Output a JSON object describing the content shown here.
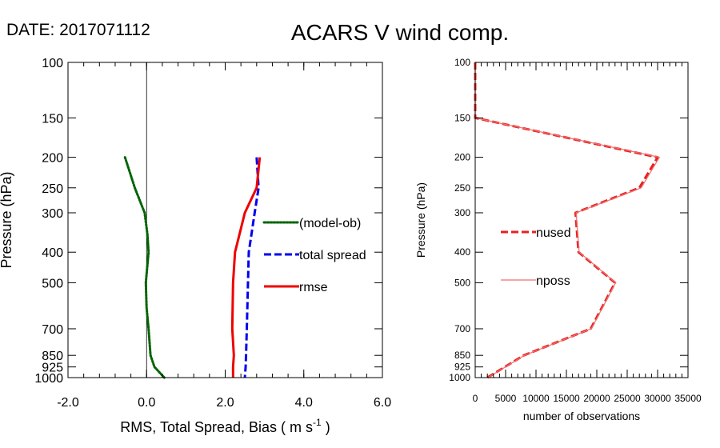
{
  "header": {
    "date_label": "DATE: 2017071112",
    "title": "ACARS V wind comp."
  },
  "colors": {
    "bias": "#006400",
    "spread": "#0000ee",
    "rmse": "#ee0000",
    "nused": "#e82020",
    "nposs": "#f07070",
    "axis": "#000000"
  },
  "chart_data": [
    {
      "type": "line",
      "xlabel_main": "RMS, Total Spread, Bias ( m s",
      "xlabel_exp": "-1",
      "xlabel_close": " )",
      "ylabel": "Pressure (hPa)",
      "xlim": [
        -2.0,
        6.0
      ],
      "ylim": [
        1000,
        100
      ],
      "y_scale": "log",
      "x_ticks": [
        -2.0,
        0.0,
        2.0,
        4.0,
        6.0
      ],
      "x_tick_labels": [
        "-2.0",
        "0.0",
        "2.0",
        "4.0",
        "6.0"
      ],
      "y_ticks": [
        100,
        150,
        200,
        250,
        300,
        400,
        500,
        700,
        850,
        925,
        1000
      ],
      "y_tick_labels": [
        "100",
        "150",
        "200",
        "250",
        "300",
        "400",
        "500",
        "700",
        "850",
        "925",
        "1000"
      ],
      "zero_line": 0.0,
      "legend_position": "center-right",
      "series": [
        {
          "name": "(model-ob)",
          "style": "dotted",
          "color": "#006400",
          "points": [
            {
              "p": 200,
              "v": -0.55
            },
            {
              "p": 250,
              "v": -0.3
            },
            {
              "p": 300,
              "v": -0.05
            },
            {
              "p": 350,
              "v": 0.02
            },
            {
              "p": 400,
              "v": 0.05
            },
            {
              "p": 500,
              "v": -0.02
            },
            {
              "p": 600,
              "v": 0.0
            },
            {
              "p": 700,
              "v": 0.05
            },
            {
              "p": 850,
              "v": 0.1
            },
            {
              "p": 925,
              "v": 0.2
            },
            {
              "p": 1000,
              "v": 0.45
            }
          ]
        },
        {
          "name": "total spread",
          "style": "dashed",
          "color": "#0000ee",
          "points": [
            {
              "p": 200,
              "v": 2.8
            },
            {
              "p": 250,
              "v": 2.85
            },
            {
              "p": 300,
              "v": 2.75
            },
            {
              "p": 400,
              "v": 2.6
            },
            {
              "p": 500,
              "v": 2.58
            },
            {
              "p": 700,
              "v": 2.55
            },
            {
              "p": 850,
              "v": 2.53
            },
            {
              "p": 925,
              "v": 2.52
            },
            {
              "p": 1000,
              "v": 2.5
            }
          ]
        },
        {
          "name": "rmse",
          "style": "solid",
          "color": "#ee0000",
          "points": [
            {
              "p": 200,
              "v": 2.88
            },
            {
              "p": 250,
              "v": 2.8
            },
            {
              "p": 300,
              "v": 2.5
            },
            {
              "p": 400,
              "v": 2.25
            },
            {
              "p": 500,
              "v": 2.2
            },
            {
              "p": 700,
              "v": 2.18
            },
            {
              "p": 850,
              "v": 2.22
            },
            {
              "p": 925,
              "v": 2.2
            },
            {
              "p": 1000,
              "v": 2.2
            }
          ]
        }
      ]
    },
    {
      "type": "line",
      "xlabel": "number of observations",
      "ylabel": "Pressure (hPa)",
      "xlim": [
        0,
        35000
      ],
      "ylim": [
        1000,
        100
      ],
      "y_scale": "log",
      "x_ticks": [
        0,
        5000,
        10000,
        15000,
        20000,
        25000,
        30000,
        35000
      ],
      "x_tick_labels": [
        "0",
        "5000",
        "10000",
        "15000",
        "20000",
        "25000",
        "30000",
        "35000"
      ],
      "y_ticks": [
        100,
        150,
        200,
        250,
        300,
        400,
        500,
        700,
        850,
        925,
        1000
      ],
      "y_tick_labels": [
        "100",
        "150",
        "200",
        "250",
        "300",
        "400",
        "500",
        "700",
        "850",
        "925",
        "1000"
      ],
      "legend_position": "center-left",
      "series": [
        {
          "name": "nused",
          "style": "dashed",
          "color": "#e82020",
          "points": [
            {
              "p": 100,
              "v": 0
            },
            {
              "p": 150,
              "v": 0
            },
            {
              "p": 200,
              "v": 30000
            },
            {
              "p": 250,
              "v": 27000
            },
            {
              "p": 300,
              "v": 16500
            },
            {
              "p": 400,
              "v": 17000
            },
            {
              "p": 500,
              "v": 23000
            },
            {
              "p": 700,
              "v": 19000
            },
            {
              "p": 850,
              "v": 8000
            },
            {
              "p": 1000,
              "v": 2000
            }
          ]
        },
        {
          "name": "nposs",
          "style": "solid",
          "color": "#f07070",
          "points": [
            {
              "p": 100,
              "v": 0
            },
            {
              "p": 150,
              "v": 0
            },
            {
              "p": 200,
              "v": 30300
            },
            {
              "p": 250,
              "v": 27300
            },
            {
              "p": 300,
              "v": 16600
            },
            {
              "p": 400,
              "v": 17100
            },
            {
              "p": 500,
              "v": 23100
            },
            {
              "p": 700,
              "v": 19100
            },
            {
              "p": 850,
              "v": 8100
            },
            {
              "p": 1000,
              "v": 2100
            }
          ]
        }
      ]
    }
  ]
}
